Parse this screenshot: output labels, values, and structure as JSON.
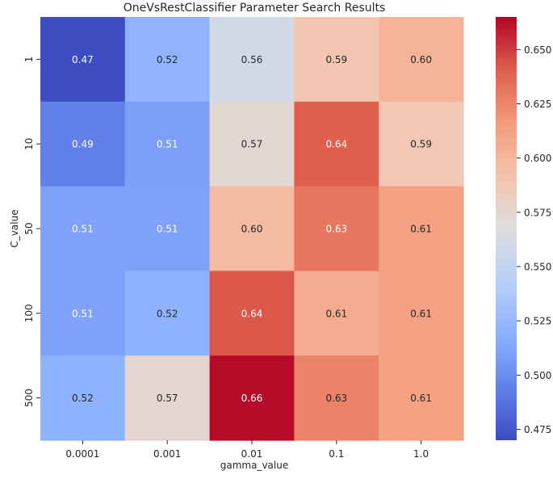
{
  "chart_data": {
    "type": "heatmap",
    "title": "OneVsRestClassifier Parameter Search Results",
    "xlabel": "gamma_value",
    "ylabel": "C_value",
    "x_categories": [
      "0.0001",
      "0.001",
      "0.01",
      "0.1",
      "1.0"
    ],
    "y_categories": [
      "1",
      "10",
      "50",
      "100",
      "500"
    ],
    "values": [
      [
        0.47,
        0.52,
        0.56,
        0.59,
        0.6
      ],
      [
        0.49,
        0.51,
        0.57,
        0.64,
        0.59
      ],
      [
        0.51,
        0.51,
        0.6,
        0.63,
        0.61
      ],
      [
        0.51,
        0.52,
        0.64,
        0.61,
        0.61
      ],
      [
        0.52,
        0.57,
        0.66,
        0.63,
        0.61
      ]
    ],
    "shading_values": [
      [
        0.471,
        0.521,
        0.56,
        0.59,
        0.602
      ],
      [
        0.494,
        0.51,
        0.573,
        0.641,
        0.589
      ],
      [
        0.511,
        0.511,
        0.597,
        0.631,
        0.613
      ],
      [
        0.511,
        0.52,
        0.643,
        0.606,
        0.613
      ],
      [
        0.52,
        0.574,
        0.663,
        0.626,
        0.612
      ]
    ],
    "value_labels": [
      [
        "0.47",
        "0.52",
        "0.56",
        "0.59",
        "0.60"
      ],
      [
        "0.49",
        "0.51",
        "0.57",
        "0.64",
        "0.59"
      ],
      [
        "0.51",
        "0.51",
        "0.60",
        "0.63",
        "0.61"
      ],
      [
        "0.51",
        "0.52",
        "0.64",
        "0.61",
        "0.61"
      ],
      [
        "0.52",
        "0.57",
        "0.66",
        "0.63",
        "0.61"
      ]
    ],
    "colormap": "coolwarm",
    "vmin": 0.47,
    "vmax": 0.665,
    "colorbar_ticks": [
      "0.475",
      "0.500",
      "0.525",
      "0.550",
      "0.575",
      "0.600",
      "0.625",
      "0.650"
    ],
    "colorbar_tick_values": [
      0.475,
      0.5,
      0.525,
      0.55,
      0.575,
      0.6,
      0.625,
      0.65
    ],
    "annotation_colors": {
      "light": "#ffffff",
      "dark": "#262626"
    },
    "axis_text_color": "#262626"
  }
}
